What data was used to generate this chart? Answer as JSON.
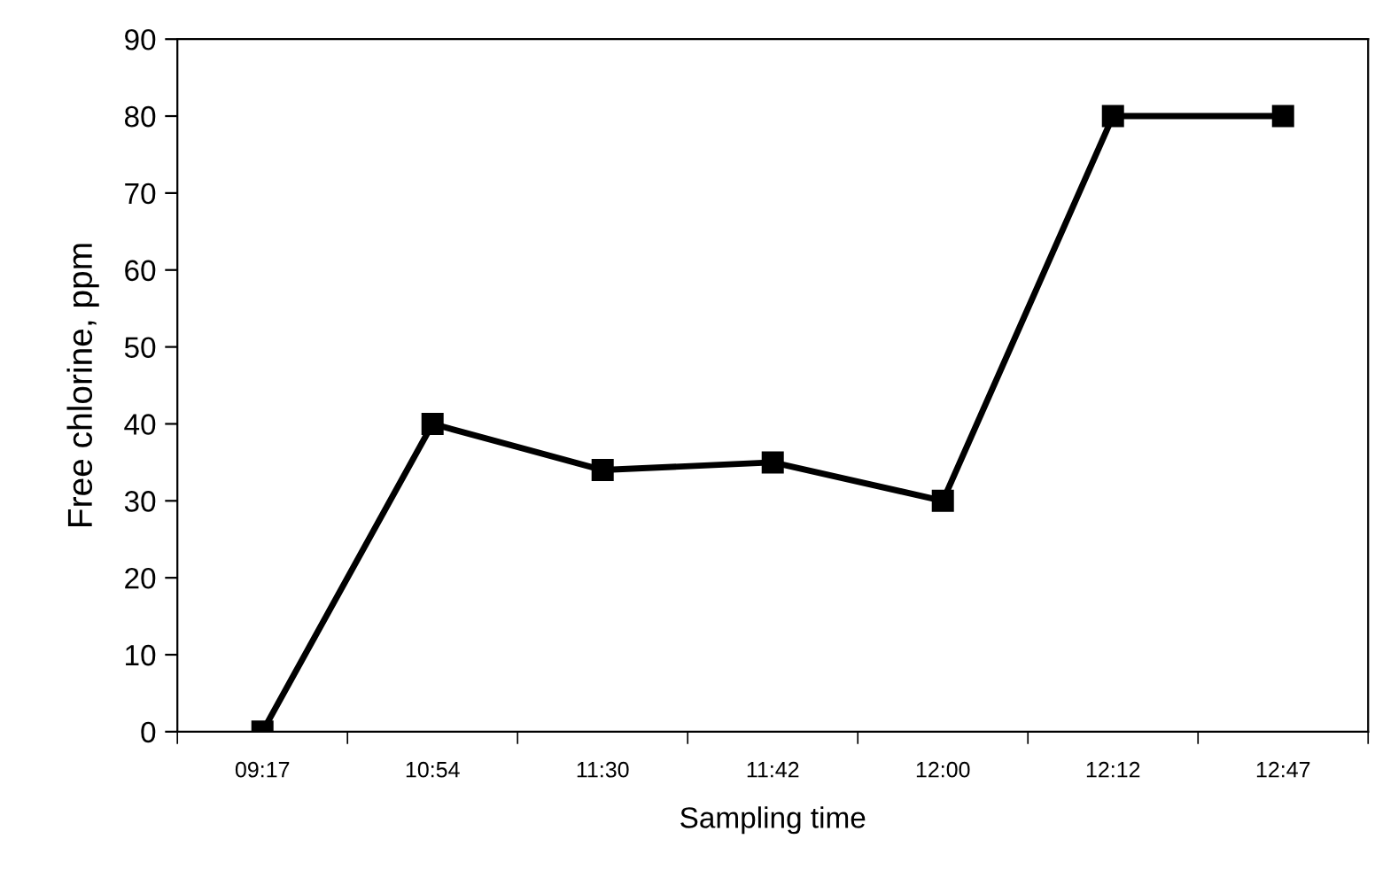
{
  "chart_data": {
    "type": "line",
    "xlabel": "Sampling time",
    "ylabel": "Free chlorine, ppm",
    "categories": [
      "09:17",
      "10:54",
      "11:30",
      "11:42",
      "12:00",
      "12:12",
      "12:47"
    ],
    "series": [
      {
        "color": "#000000",
        "values": [
          0,
          40,
          34,
          35,
          30,
          80,
          80
        ]
      }
    ],
    "ylim": [
      0,
      90
    ],
    "yticks": [
      0,
      10,
      20,
      30,
      40,
      50,
      60,
      70,
      80,
      90
    ],
    "marker": "square",
    "line_style": "solid",
    "grid": false
  }
}
